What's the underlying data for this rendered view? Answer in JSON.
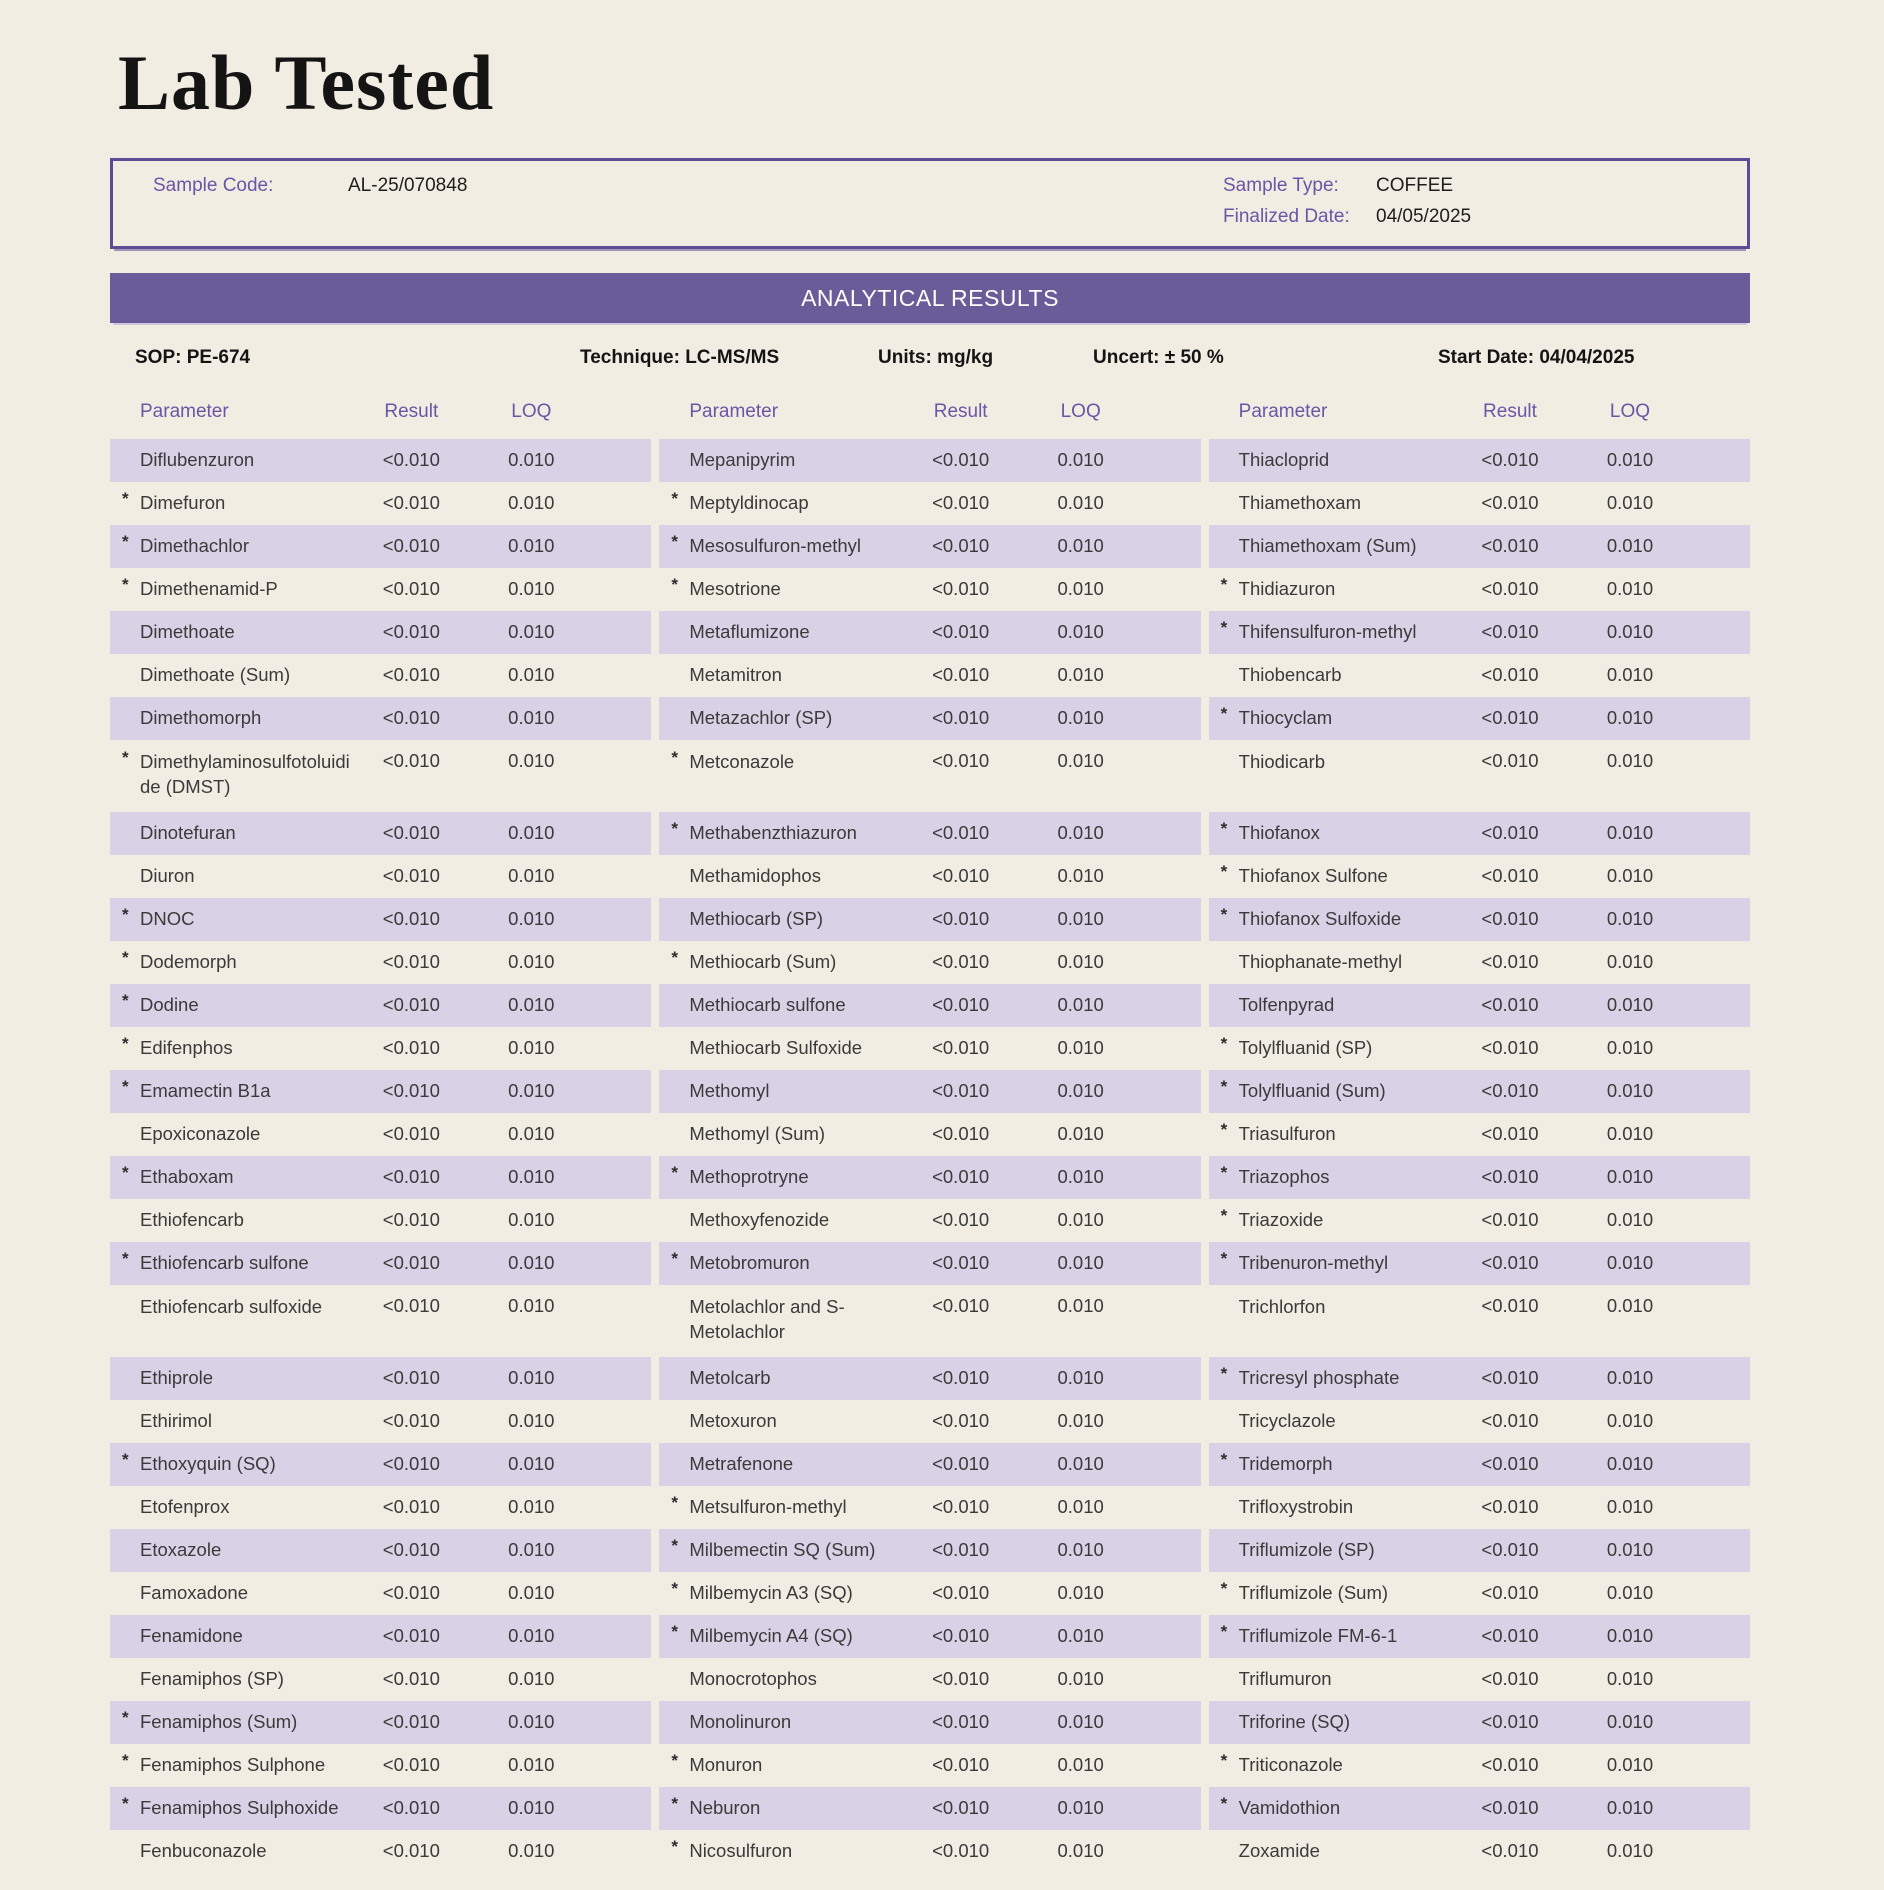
{
  "page": {
    "title": "Lab Tested"
  },
  "sample_info": {
    "sample_code_label": "Sample Code:",
    "sample_code": "AL-25/070848",
    "sample_type_label": "Sample Type:",
    "sample_type": "COFFEE",
    "finalized_date_label": "Finalized Date:",
    "finalized_date": "04/05/2025"
  },
  "results_banner": "ANALYTICAL RESULTS",
  "method_info": {
    "sop": "SOP: PE-674",
    "technique": "Technique: LC-MS/MS",
    "units": "Units: mg/kg",
    "uncert": "Uncert: ± 50 %",
    "start_date": "Start Date: 04/04/2025"
  },
  "colors": {
    "background": "#f2ede3",
    "banner_purple": "#6a5b99",
    "stripe_lavender": "#d9d2e6",
    "label_purple": "#6b55a6",
    "border_purple": "#5c4c94"
  },
  "table": {
    "headers": {
      "parameter": "Parameter",
      "result": "Result",
      "loq": "LOQ"
    },
    "rows": [
      {
        "tall": false,
        "cells": [
          {
            "star": false,
            "param": "Diflubenzuron",
            "result": "<0.010",
            "loq": "0.010"
          },
          {
            "star": false,
            "param": "Mepanipyrim",
            "result": "<0.010",
            "loq": "0.010"
          },
          {
            "star": false,
            "param": "Thiacloprid",
            "result": "<0.010",
            "loq": "0.010"
          }
        ]
      },
      {
        "tall": false,
        "cells": [
          {
            "star": true,
            "param": "Dimefuron",
            "result": "<0.010",
            "loq": "0.010"
          },
          {
            "star": true,
            "param": "Meptyldinocap",
            "result": "<0.010",
            "loq": "0.010"
          },
          {
            "star": false,
            "param": "Thiamethoxam",
            "result": "<0.010",
            "loq": "0.010"
          }
        ]
      },
      {
        "tall": false,
        "cells": [
          {
            "star": true,
            "param": "Dimethachlor",
            "result": "<0.010",
            "loq": "0.010"
          },
          {
            "star": true,
            "param": "Mesosulfuron-methyl",
            "result": "<0.010",
            "loq": "0.010"
          },
          {
            "star": false,
            "param": "Thiamethoxam (Sum)",
            "result": "<0.010",
            "loq": "0.010"
          }
        ]
      },
      {
        "tall": false,
        "cells": [
          {
            "star": true,
            "param": "Dimethenamid-P",
            "result": "<0.010",
            "loq": "0.010"
          },
          {
            "star": true,
            "param": "Mesotrione",
            "result": "<0.010",
            "loq": "0.010"
          },
          {
            "star": true,
            "param": "Thidiazuron",
            "result": "<0.010",
            "loq": "0.010"
          }
        ]
      },
      {
        "tall": false,
        "cells": [
          {
            "star": false,
            "param": "Dimethoate",
            "result": "<0.010",
            "loq": "0.010"
          },
          {
            "star": false,
            "param": "Metaflumizone",
            "result": "<0.010",
            "loq": "0.010"
          },
          {
            "star": true,
            "param": "Thifensulfuron-methyl",
            "result": "<0.010",
            "loq": "0.010"
          }
        ]
      },
      {
        "tall": false,
        "cells": [
          {
            "star": false,
            "param": "Dimethoate (Sum)",
            "result": "<0.010",
            "loq": "0.010"
          },
          {
            "star": false,
            "param": "Metamitron",
            "result": "<0.010",
            "loq": "0.010"
          },
          {
            "star": false,
            "param": "Thiobencarb",
            "result": "<0.010",
            "loq": "0.010"
          }
        ]
      },
      {
        "tall": false,
        "cells": [
          {
            "star": false,
            "param": "Dimethomorph",
            "result": "<0.010",
            "loq": "0.010"
          },
          {
            "star": false,
            "param": "Metazachlor (SP)",
            "result": "<0.010",
            "loq": "0.010"
          },
          {
            "star": true,
            "param": "Thiocyclam",
            "result": "<0.010",
            "loq": "0.010"
          }
        ]
      },
      {
        "tall": true,
        "cells": [
          {
            "star": true,
            "param": "Dimethylaminosulfotoluidide (DMST)",
            "result": "<0.010",
            "loq": "0.010"
          },
          {
            "star": true,
            "param": "Metconazole",
            "result": "<0.010",
            "loq": "0.010"
          },
          {
            "star": false,
            "param": "Thiodicarb",
            "result": "<0.010",
            "loq": "0.010"
          }
        ]
      },
      {
        "tall": false,
        "cells": [
          {
            "star": false,
            "param": "Dinotefuran",
            "result": "<0.010",
            "loq": "0.010"
          },
          {
            "star": true,
            "param": "Methabenzthiazuron",
            "result": "<0.010",
            "loq": "0.010"
          },
          {
            "star": true,
            "param": "Thiofanox",
            "result": "<0.010",
            "loq": "0.010"
          }
        ]
      },
      {
        "tall": false,
        "cells": [
          {
            "star": false,
            "param": "Diuron",
            "result": "<0.010",
            "loq": "0.010"
          },
          {
            "star": false,
            "param": "Methamidophos",
            "result": "<0.010",
            "loq": "0.010"
          },
          {
            "star": true,
            "param": "Thiofanox Sulfone",
            "result": "<0.010",
            "loq": "0.010"
          }
        ]
      },
      {
        "tall": false,
        "cells": [
          {
            "star": true,
            "param": "DNOC",
            "result": "<0.010",
            "loq": "0.010"
          },
          {
            "star": false,
            "param": "Methiocarb (SP)",
            "result": "<0.010",
            "loq": "0.010"
          },
          {
            "star": true,
            "param": "Thiofanox Sulfoxide",
            "result": "<0.010",
            "loq": "0.010"
          }
        ]
      },
      {
        "tall": false,
        "cells": [
          {
            "star": true,
            "param": "Dodemorph",
            "result": "<0.010",
            "loq": "0.010"
          },
          {
            "star": true,
            "param": "Methiocarb (Sum)",
            "result": "<0.010",
            "loq": "0.010"
          },
          {
            "star": false,
            "param": "Thiophanate-methyl",
            "result": "<0.010",
            "loq": "0.010"
          }
        ]
      },
      {
        "tall": false,
        "cells": [
          {
            "star": true,
            "param": "Dodine",
            "result": "<0.010",
            "loq": "0.010"
          },
          {
            "star": false,
            "param": "Methiocarb sulfone",
            "result": "<0.010",
            "loq": "0.010"
          },
          {
            "star": false,
            "param": "Tolfenpyrad",
            "result": "<0.010",
            "loq": "0.010"
          }
        ]
      },
      {
        "tall": false,
        "cells": [
          {
            "star": true,
            "param": "Edifenphos",
            "result": "<0.010",
            "loq": "0.010"
          },
          {
            "star": false,
            "param": "Methiocarb Sulfoxide",
            "result": "<0.010",
            "loq": "0.010"
          },
          {
            "star": true,
            "param": "Tolylfluanid (SP)",
            "result": "<0.010",
            "loq": "0.010"
          }
        ]
      },
      {
        "tall": false,
        "cells": [
          {
            "star": true,
            "param": "Emamectin B1a",
            "result": "<0.010",
            "loq": "0.010"
          },
          {
            "star": false,
            "param": "Methomyl",
            "result": "<0.010",
            "loq": "0.010"
          },
          {
            "star": true,
            "param": "Tolylfluanid (Sum)",
            "result": "<0.010",
            "loq": "0.010"
          }
        ]
      },
      {
        "tall": false,
        "cells": [
          {
            "star": false,
            "param": "Epoxiconazole",
            "result": "<0.010",
            "loq": "0.010"
          },
          {
            "star": false,
            "param": "Methomyl (Sum)",
            "result": "<0.010",
            "loq": "0.010"
          },
          {
            "star": true,
            "param": "Triasulfuron",
            "result": "<0.010",
            "loq": "0.010"
          }
        ]
      },
      {
        "tall": false,
        "cells": [
          {
            "star": true,
            "param": "Ethaboxam",
            "result": "<0.010",
            "loq": "0.010"
          },
          {
            "star": true,
            "param": "Methoprotryne",
            "result": "<0.010",
            "loq": "0.010"
          },
          {
            "star": true,
            "param": "Triazophos",
            "result": "<0.010",
            "loq": "0.010"
          }
        ]
      },
      {
        "tall": false,
        "cells": [
          {
            "star": false,
            "param": "Ethiofencarb",
            "result": "<0.010",
            "loq": "0.010"
          },
          {
            "star": false,
            "param": "Methoxyfenozide",
            "result": "<0.010",
            "loq": "0.010"
          },
          {
            "star": true,
            "param": "Triazoxide",
            "result": "<0.010",
            "loq": "0.010"
          }
        ]
      },
      {
        "tall": false,
        "cells": [
          {
            "star": true,
            "param": "Ethiofencarb sulfone",
            "result": "<0.010",
            "loq": "0.010"
          },
          {
            "star": true,
            "param": "Metobromuron",
            "result": "<0.010",
            "loq": "0.010"
          },
          {
            "star": true,
            "param": "Tribenuron-methyl",
            "result": "<0.010",
            "loq": "0.010"
          }
        ]
      },
      {
        "tall": true,
        "cells": [
          {
            "star": false,
            "param": "Ethiofencarb sulfoxide",
            "result": "<0.010",
            "loq": "0.010"
          },
          {
            "star": false,
            "param": "Metolachlor and S-Metolachlor",
            "result": "<0.010",
            "loq": "0.010"
          },
          {
            "star": false,
            "param": "Trichlorfon",
            "result": "<0.010",
            "loq": "0.010"
          }
        ]
      },
      {
        "tall": false,
        "cells": [
          {
            "star": false,
            "param": "Ethiprole",
            "result": "<0.010",
            "loq": "0.010"
          },
          {
            "star": false,
            "param": "Metolcarb",
            "result": "<0.010",
            "loq": "0.010"
          },
          {
            "star": true,
            "param": "Tricresyl phosphate",
            "result": "<0.010",
            "loq": "0.010"
          }
        ]
      },
      {
        "tall": false,
        "cells": [
          {
            "star": false,
            "param": "Ethirimol",
            "result": "<0.010",
            "loq": "0.010"
          },
          {
            "star": false,
            "param": "Metoxuron",
            "result": "<0.010",
            "loq": "0.010"
          },
          {
            "star": false,
            "param": "Tricyclazole",
            "result": "<0.010",
            "loq": "0.010"
          }
        ]
      },
      {
        "tall": false,
        "cells": [
          {
            "star": true,
            "param": "Ethoxyquin (SQ)",
            "result": "<0.010",
            "loq": "0.010"
          },
          {
            "star": false,
            "param": "Metrafenone",
            "result": "<0.010",
            "loq": "0.010"
          },
          {
            "star": true,
            "param": "Tridemorph",
            "result": "<0.010",
            "loq": "0.010"
          }
        ]
      },
      {
        "tall": false,
        "cells": [
          {
            "star": false,
            "param": "Etofenprox",
            "result": "<0.010",
            "loq": "0.010"
          },
          {
            "star": true,
            "param": "Metsulfuron-methyl",
            "result": "<0.010",
            "loq": "0.010"
          },
          {
            "star": false,
            "param": "Trifloxystrobin",
            "result": "<0.010",
            "loq": "0.010"
          }
        ]
      },
      {
        "tall": false,
        "cells": [
          {
            "star": false,
            "param": "Etoxazole",
            "result": "<0.010",
            "loq": "0.010"
          },
          {
            "star": true,
            "param": "Milbemectin SQ (Sum)",
            "result": "<0.010",
            "loq": "0.010"
          },
          {
            "star": false,
            "param": "Triflumizole (SP)",
            "result": "<0.010",
            "loq": "0.010"
          }
        ]
      },
      {
        "tall": false,
        "cells": [
          {
            "star": false,
            "param": "Famoxadone",
            "result": "<0.010",
            "loq": "0.010"
          },
          {
            "star": true,
            "param": "Milbemycin A3 (SQ)",
            "result": "<0.010",
            "loq": "0.010"
          },
          {
            "star": true,
            "param": "Triflumizole (Sum)",
            "result": "<0.010",
            "loq": "0.010"
          }
        ]
      },
      {
        "tall": false,
        "cells": [
          {
            "star": false,
            "param": "Fenamidone",
            "result": "<0.010",
            "loq": "0.010"
          },
          {
            "star": true,
            "param": "Milbemycin A4 (SQ)",
            "result": "<0.010",
            "loq": "0.010"
          },
          {
            "star": true,
            "param": "Triflumizole FM-6-1",
            "result": "<0.010",
            "loq": "0.010"
          }
        ]
      },
      {
        "tall": false,
        "cells": [
          {
            "star": false,
            "param": "Fenamiphos (SP)",
            "result": "<0.010",
            "loq": "0.010"
          },
          {
            "star": false,
            "param": "Monocrotophos",
            "result": "<0.010",
            "loq": "0.010"
          },
          {
            "star": false,
            "param": "Triflumuron",
            "result": "<0.010",
            "loq": "0.010"
          }
        ]
      },
      {
        "tall": false,
        "cells": [
          {
            "star": true,
            "param": "Fenamiphos (Sum)",
            "result": "<0.010",
            "loq": "0.010"
          },
          {
            "star": false,
            "param": "Monolinuron",
            "result": "<0.010",
            "loq": "0.010"
          },
          {
            "star": false,
            "param": "Triforine (SQ)",
            "result": "<0.010",
            "loq": "0.010"
          }
        ]
      },
      {
        "tall": false,
        "cells": [
          {
            "star": true,
            "param": "Fenamiphos Sulphone",
            "result": "<0.010",
            "loq": "0.010"
          },
          {
            "star": true,
            "param": "Monuron",
            "result": "<0.010",
            "loq": "0.010"
          },
          {
            "star": true,
            "param": "Triticonazole",
            "result": "<0.010",
            "loq": "0.010"
          }
        ]
      },
      {
        "tall": false,
        "cells": [
          {
            "star": true,
            "param": "Fenamiphos Sulphoxide",
            "result": "<0.010",
            "loq": "0.010"
          },
          {
            "star": true,
            "param": "Neburon",
            "result": "<0.010",
            "loq": "0.010"
          },
          {
            "star": true,
            "param": "Vamidothion",
            "result": "<0.010",
            "loq": "0.010"
          }
        ]
      },
      {
        "tall": false,
        "cells": [
          {
            "star": false,
            "param": "Fenbuconazole",
            "result": "<0.010",
            "loq": "0.010"
          },
          {
            "star": true,
            "param": "Nicosulfuron",
            "result": "<0.010",
            "loq": "0.010"
          },
          {
            "star": false,
            "param": "Zoxamide",
            "result": "<0.010",
            "loq": "0.010"
          }
        ]
      }
    ]
  }
}
